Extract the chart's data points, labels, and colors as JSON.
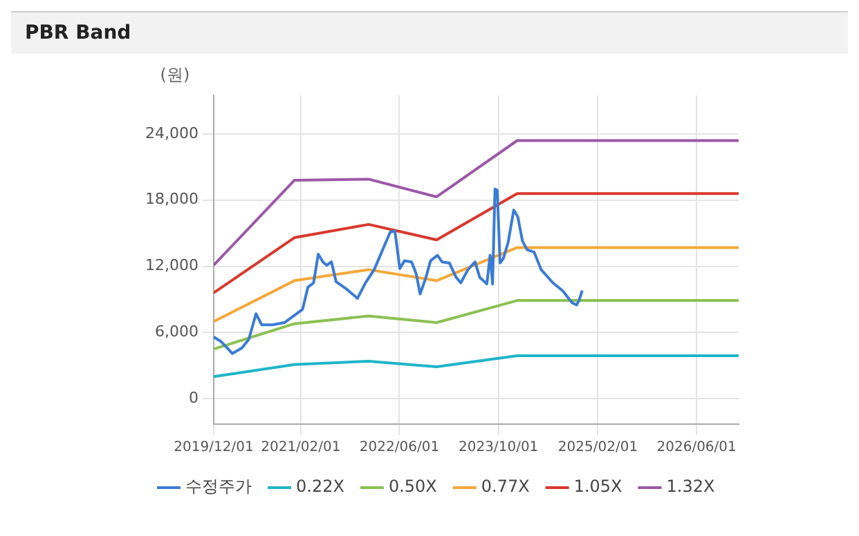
{
  "chart_data": {
    "type": "line",
    "title": "PBR Band",
    "ylabel": "(원)",
    "xlim": [
      "2019-12-01",
      "2026-12-25"
    ],
    "xticks": [
      {
        "value": "2019-12-01",
        "label": "2019/12/01"
      },
      {
        "value": "2021-02-01",
        "label": "2021/02/01"
      },
      {
        "value": "2022-06-01",
        "label": "2022/06/01"
      },
      {
        "value": "2023-10-01",
        "label": "2023/10/01"
      },
      {
        "value": "2025-02-01",
        "label": "2025/02/01"
      },
      {
        "value": "2026-06-01",
        "label": "2026/06/01"
      }
    ],
    "ylim": [
      -2300,
      27500
    ],
    "yticks": [
      0,
      {
        "value": 6000,
        "label": "6,000"
      },
      {
        "value": 12000,
        "label": "12,000"
      },
      {
        "value": 18000,
        "label": "18,000"
      },
      {
        "value": 24000,
        "label": "24,000"
      }
    ],
    "grid": true,
    "legend": "bottom",
    "marker": "none",
    "line_style": "solid",
    "series": [
      {
        "name": "수정주가",
        "color": "#3a7bd5",
        "x": [
          "2019-12-01",
          "2020-01-05",
          "2020-03-02",
          "2020-04-18",
          "2020-05-22",
          "2020-06-26",
          "2020-07-24",
          "2020-09-16",
          "2020-11-13",
          "2021-01-11",
          "2021-02-10",
          "2021-03-08",
          "2021-04-05",
          "2021-04-28",
          "2021-05-21",
          "2021-06-09",
          "2021-07-02",
          "2021-07-25",
          "2021-09-10",
          "2021-11-07",
          "2021-12-16",
          "2022-01-28",
          "2022-03-13",
          "2022-04-17",
          "2022-05-10",
          "2022-06-03",
          "2022-06-26",
          "2022-07-31",
          "2022-08-23",
          "2022-09-11",
          "2022-10-08",
          "2022-11-01",
          "2022-12-05",
          "2022-12-28",
          "2023-02-02",
          "2023-03-07",
          "2023-03-30",
          "2023-05-04",
          "2023-06-08",
          "2023-07-01",
          "2023-08-05",
          "2023-08-21",
          "2023-09-02",
          "2023-09-14",
          "2023-09-25",
          "2023-10-09",
          "2023-10-25",
          "2023-11-18",
          "2023-12-15",
          "2024-01-04",
          "2024-01-27",
          "2024-02-19",
          "2024-03-24",
          "2024-04-28",
          "2024-06-25",
          "2024-08-11",
          "2024-09-27",
          "2024-10-19",
          "2024-10-31",
          "2024-11-16"
        ],
        "values": [
          5600,
          5200,
          4100,
          4600,
          5400,
          7700,
          6700,
          6700,
          6900,
          7700,
          8100,
          10100,
          10500,
          13100,
          12400,
          12100,
          12400,
          10600,
          10000,
          9100,
          10500,
          11700,
          13600,
          15100,
          15200,
          11800,
          12500,
          12400,
          11300,
          9500,
          10900,
          12500,
          13000,
          12400,
          12300,
          11000,
          10500,
          11700,
          12400,
          11000,
          10400,
          13000,
          10400,
          19000,
          18900,
          12300,
          12700,
          14200,
          17100,
          16500,
          14300,
          13500,
          13300,
          11700,
          10500,
          9800,
          8700,
          8500,
          8900,
          9800
        ]
      },
      {
        "name": "0.22X",
        "color": "#1fb5c9",
        "x": [
          "2019-12-01",
          "2021-01-01",
          "2022-01-01",
          "2022-12-01",
          "2024-01-01",
          "2026-12-25"
        ],
        "values": [
          2000,
          3100,
          3400,
          2900,
          3900,
          3900
        ]
      },
      {
        "name": "0.50X",
        "color": "#8cc152",
        "x": [
          "2019-12-01",
          "2021-01-01",
          "2022-01-01",
          "2022-12-01",
          "2024-01-01",
          "2026-12-25"
        ],
        "values": [
          4500,
          6800,
          7500,
          6900,
          8900,
          8900
        ]
      },
      {
        "name": "0.77X",
        "color": "#f5a83a",
        "x": [
          "2019-12-01",
          "2021-01-01",
          "2022-01-01",
          "2022-12-01",
          "2024-01-01",
          "2026-12-25"
        ],
        "values": [
          7000,
          10700,
          11700,
          10700,
          13700,
          13700
        ]
      },
      {
        "name": "1.05X",
        "color": "#d9382c",
        "x": [
          "2019-12-01",
          "2021-01-01",
          "2022-01-01",
          "2022-12-01",
          "2024-01-01",
          "2026-12-25"
        ],
        "values": [
          9600,
          14600,
          15800,
          14400,
          18600,
          18600
        ]
      },
      {
        "name": "1.32X",
        "color": "#9b59a6",
        "x": [
          "2019-12-01",
          "2021-01-01",
          "2022-01-01",
          "2022-12-01",
          "2024-01-01",
          "2026-12-25"
        ],
        "values": [
          12100,
          19800,
          19900,
          18300,
          23400,
          23400
        ]
      }
    ]
  }
}
